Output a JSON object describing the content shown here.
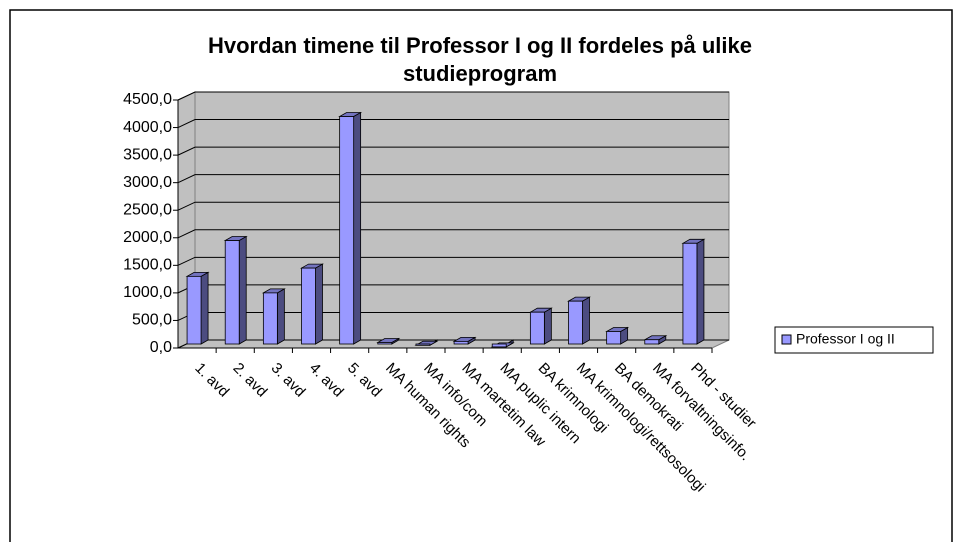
{
  "chart_data": {
    "type": "bar3d",
    "title": "Hvordan timene til Professor I og II fordeles på ulike studieprogram",
    "categories": [
      "1. avd",
      "2. avd",
      "3. avd",
      "4. avd",
      "5. avd",
      "MA human rights",
      "MA info/com",
      "MA martetim law",
      "MA puplic intern",
      "BA krimnologi",
      "MA krimnologi/rettsosologi",
      "BA demokrati",
      "MA forvaltningsinfo.",
      "Phd - studier"
    ],
    "series": [
      {
        "name": "Professor I og II",
        "color": "#9999ff",
        "values": [
          1300,
          1950,
          1000,
          1450,
          4200,
          100,
          50,
          120,
          20,
          650,
          850,
          300,
          150,
          1900
        ]
      }
    ],
    "ylim": [
      0,
      4500
    ],
    "yticks": [
      {
        "value": 0,
        "label": "0,0"
      },
      {
        "value": 500,
        "label": "500,0"
      },
      {
        "value": 1000,
        "label": "1000,0"
      },
      {
        "value": 1500,
        "label": "1500,0"
      },
      {
        "value": 2000,
        "label": "2000,0"
      },
      {
        "value": 2500,
        "label": "2500,0"
      },
      {
        "value": 3000,
        "label": "3000,0"
      },
      {
        "value": 3500,
        "label": "3500,0"
      },
      {
        "value": 4000,
        "label": "4000,0"
      },
      {
        "value": 4500,
        "label": "4500,0"
      }
    ],
    "grid": true,
    "legend": "right"
  }
}
